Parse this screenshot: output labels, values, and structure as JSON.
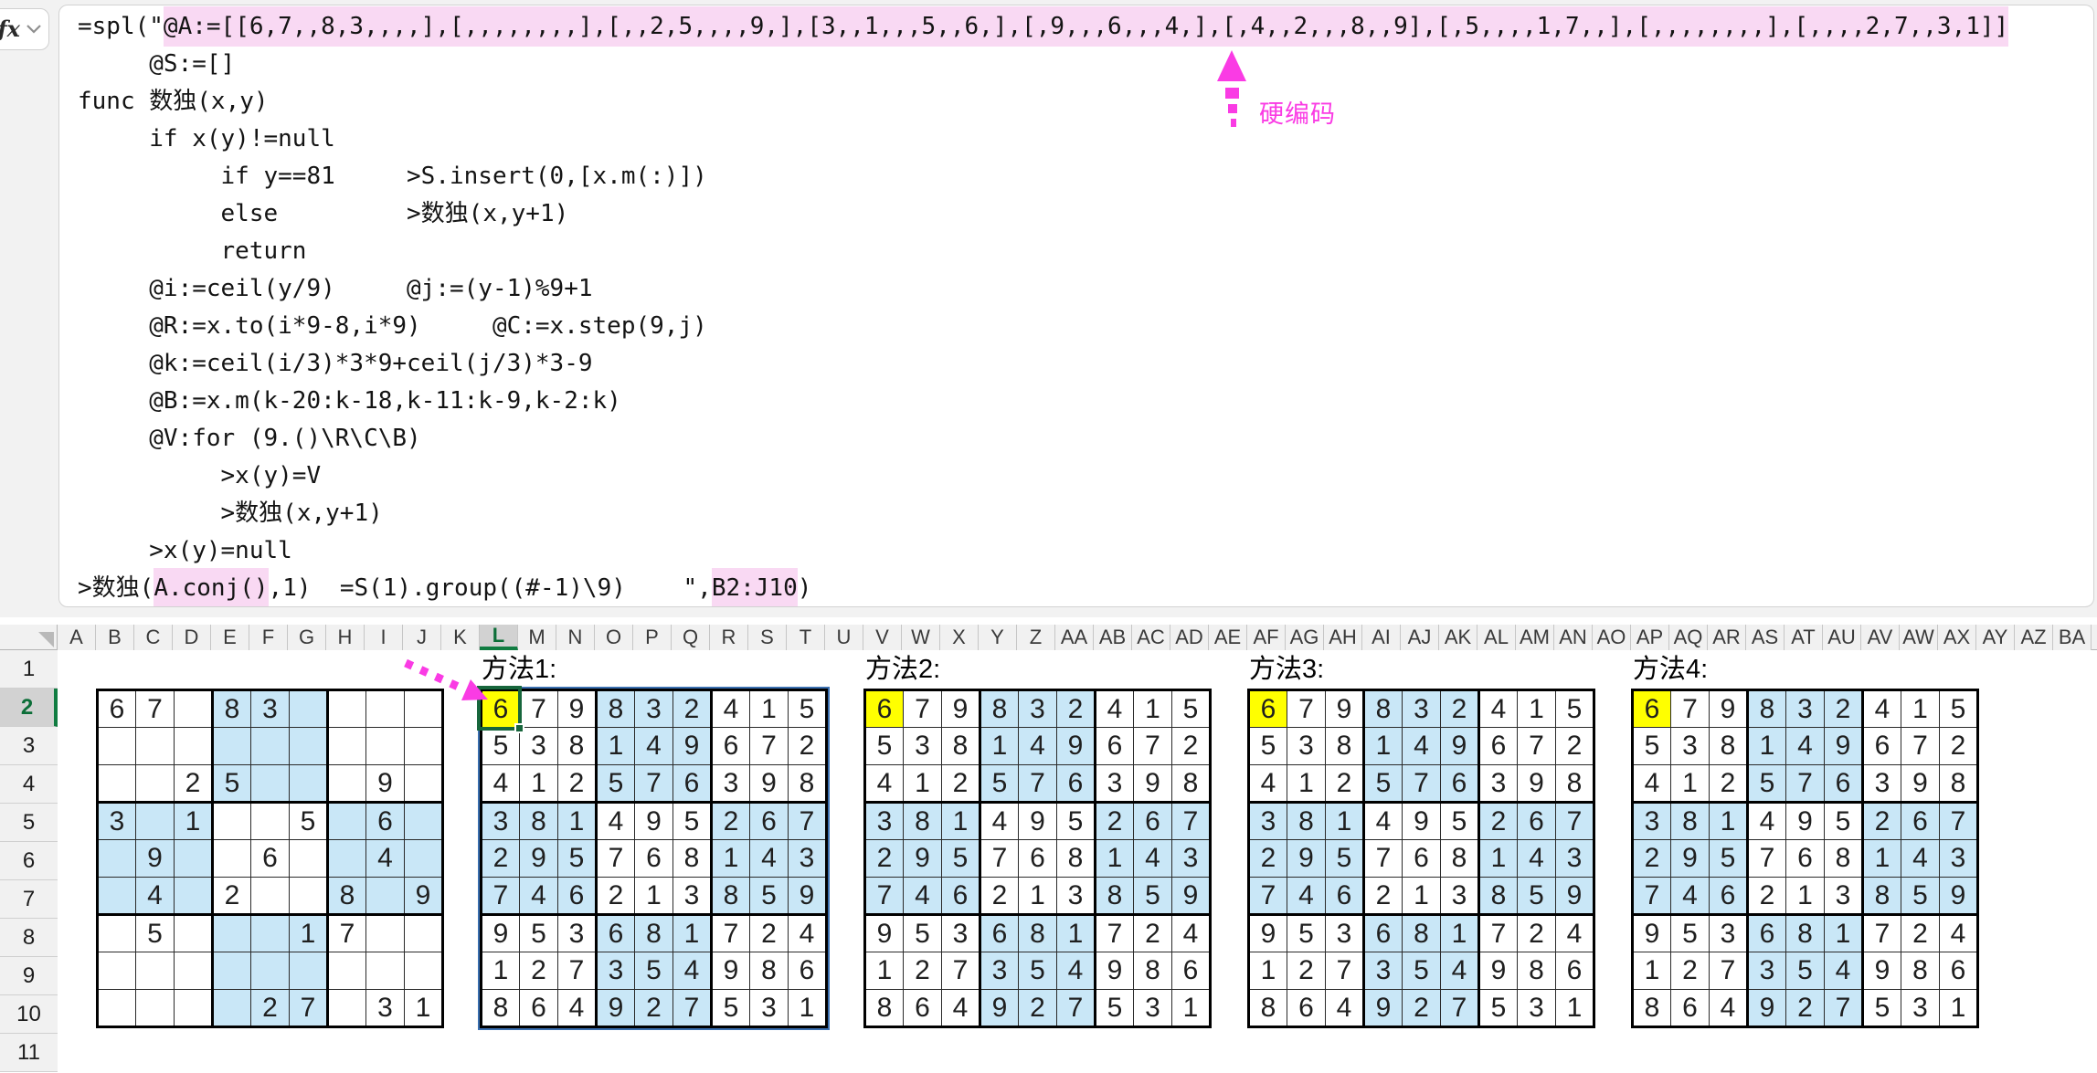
{
  "formula_bar": {
    "fx_label": "fx",
    "code_lines": [
      {
        "segments": [
          {
            "t": "=spl(\"",
            "hl": false
          },
          {
            "t": "@A:=[[6,7,,8,3,,,,],[,,,,,,,,],[,,2,5,,,,9,],[3,,1,,,5,,6,],[,9,,,6,,,4,],[,4,,2,,,8,,9],[,5,,,,1,7,,],[,,,,,,,,],[,,,,2,7,,3,1]]",
            "hl": true
          }
        ]
      },
      {
        "segments": [
          {
            "t": "     @S:=[]",
            "hl": false
          }
        ]
      },
      {
        "segments": [
          {
            "t": "func 数独(x,y)",
            "hl": false
          }
        ]
      },
      {
        "segments": [
          {
            "t": "     if x(y)!=null",
            "hl": false
          }
        ]
      },
      {
        "segments": [
          {
            "t": "          if y==81     >S.insert(0,[x.m(:)])",
            "hl": false
          }
        ]
      },
      {
        "segments": [
          {
            "t": "          else         >数独(x,y+1)",
            "hl": false
          }
        ]
      },
      {
        "segments": [
          {
            "t": "          return",
            "hl": false
          }
        ]
      },
      {
        "segments": [
          {
            "t": "     @i:=ceil(y/9)     @j:=(y-1)%9+1",
            "hl": false
          }
        ]
      },
      {
        "segments": [
          {
            "t": "     @R:=x.to(i*9-8,i*9)     @C:=x.step(9,j)",
            "hl": false
          }
        ]
      },
      {
        "segments": [
          {
            "t": "     @k:=ceil(i/3)*3*9+ceil(j/3)*3-9",
            "hl": false
          }
        ]
      },
      {
        "segments": [
          {
            "t": "     @B:=x.m(k-20:k-18,k-11:k-9,k-2:k)",
            "hl": false
          }
        ]
      },
      {
        "segments": [
          {
            "t": "     @V:for (9.()\\R\\C\\B)",
            "hl": false
          }
        ]
      },
      {
        "segments": [
          {
            "t": "          >x(y)=V",
            "hl": false
          }
        ]
      },
      {
        "segments": [
          {
            "t": "          >数独(x,y+1)",
            "hl": false
          }
        ]
      },
      {
        "segments": [
          {
            "t": "     >x(y)=null",
            "hl": false
          }
        ]
      },
      {
        "segments": [
          {
            "t": ">数独(",
            "hl": false
          },
          {
            "t": "A.conj()",
            "hl": true
          },
          {
            "t": ",1)  =S(1).group((#-1)\\9)    \",",
            "hl": false
          },
          {
            "t": "B2:J10",
            "hl": true
          },
          {
            "t": ")",
            "hl": false
          }
        ]
      }
    ]
  },
  "annotations": {
    "hardcode_label": "硬编码",
    "accent_color": "#fa3be4"
  },
  "grid": {
    "column_headers": [
      "A",
      "B",
      "C",
      "D",
      "E",
      "F",
      "G",
      "H",
      "I",
      "J",
      "K",
      "L",
      "M",
      "N",
      "O",
      "P",
      "Q",
      "R",
      "S",
      "T",
      "U",
      "V",
      "W",
      "X",
      "Y",
      "Z",
      "AA",
      "AB",
      "AC",
      "AD",
      "AE",
      "AF",
      "AG",
      "AH",
      "AI",
      "AJ",
      "AK",
      "AL",
      "AM",
      "AN",
      "AO",
      "AP",
      "AQ",
      "AR",
      "AS",
      "AT",
      "AU",
      "AV",
      "AW",
      "AX",
      "AY",
      "AZ",
      "BA"
    ],
    "selected_column": "L",
    "row_headers": [
      "1",
      "2",
      "3",
      "4",
      "5",
      "6",
      "7",
      "8",
      "9",
      "10",
      "11"
    ],
    "selected_row": "2"
  },
  "sudoku": {
    "colors": {
      "box_fill": "#c9e7f7",
      "highlight_cell": "#ffff00",
      "spill_border": "#3a6fb0"
    },
    "puzzle": [
      [
        "6",
        "7",
        "",
        "8",
        "3",
        "",
        "",
        "",
        ""
      ],
      [
        "",
        "",
        "",
        "",
        "",
        "",
        "",
        "",
        ""
      ],
      [
        "",
        "",
        "2",
        "5",
        "",
        "",
        "",
        "9",
        ""
      ],
      [
        "3",
        "",
        "1",
        "",
        "",
        "5",
        "",
        "6",
        ""
      ],
      [
        "",
        "9",
        "",
        "",
        "6",
        "",
        "",
        "4",
        ""
      ],
      [
        "",
        "4",
        "",
        "2",
        "",
        "",
        "8",
        "",
        "9"
      ],
      [
        "",
        "5",
        "",
        "",
        "",
        "1",
        "7",
        "",
        ""
      ],
      [
        "",
        "",
        "",
        "",
        "",
        "",
        "",
        "",
        ""
      ],
      [
        "",
        "",
        "",
        "",
        "2",
        "7",
        "",
        "3",
        "1"
      ]
    ],
    "solution": [
      [
        "6",
        "7",
        "9",
        "8",
        "3",
        "2",
        "4",
        "1",
        "5"
      ],
      [
        "5",
        "3",
        "8",
        "1",
        "4",
        "9",
        "6",
        "7",
        "2"
      ],
      [
        "4",
        "1",
        "2",
        "5",
        "7",
        "6",
        "3",
        "9",
        "8"
      ],
      [
        "3",
        "8",
        "1",
        "4",
        "9",
        "5",
        "2",
        "6",
        "7"
      ],
      [
        "2",
        "9",
        "5",
        "7",
        "6",
        "8",
        "1",
        "4",
        "3"
      ],
      [
        "7",
        "4",
        "6",
        "2",
        "1",
        "3",
        "8",
        "5",
        "9"
      ],
      [
        "9",
        "5",
        "3",
        "6",
        "8",
        "1",
        "7",
        "2",
        "4"
      ],
      [
        "1",
        "2",
        "7",
        "3",
        "5",
        "4",
        "9",
        "8",
        "6"
      ],
      [
        "8",
        "6",
        "4",
        "9",
        "2",
        "7",
        "5",
        "3",
        "1"
      ]
    ],
    "methods": [
      {
        "label": "方法1:",
        "col_index": 11
      },
      {
        "label": "方法2:",
        "col_index": 21
      },
      {
        "label": "方法3:",
        "col_index": 31
      },
      {
        "label": "方法4:",
        "col_index": 41
      }
    ]
  }
}
